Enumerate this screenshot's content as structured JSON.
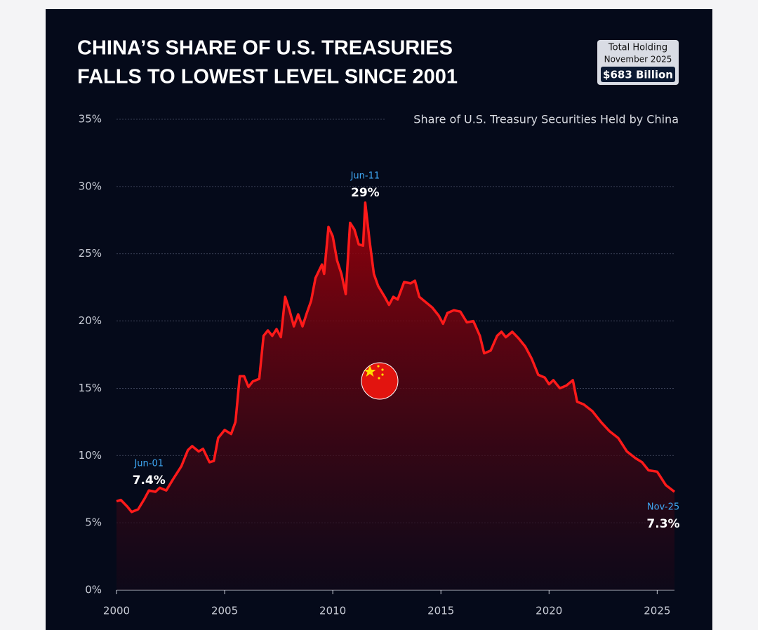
{
  "chart_data": {
    "type": "area",
    "title": [
      "CHINA’S SHARE OF U.S. TREASURIES",
      "FALLS TO LOWEST LEVEL SINCE 2001"
    ],
    "subtitle": "Share of U.S. Treasury Securities Held by China",
    "info_box": {
      "label": "Total Holding",
      "date": "November 2025",
      "value": "$683 Billion"
    },
    "x": [
      2000.0,
      2000.2,
      2000.5,
      2000.7,
      2001.0,
      2001.3,
      2001.5,
      2001.8,
      2002.0,
      2002.3,
      2002.6,
      2003.0,
      2003.3,
      2003.5,
      2003.8,
      2004.0,
      2004.3,
      2004.5,
      2004.7,
      2005.0,
      2005.3,
      2005.5,
      2005.7,
      2005.9,
      2006.1,
      2006.3,
      2006.6,
      2006.8,
      2007.0,
      2007.2,
      2007.4,
      2007.6,
      2007.8,
      2008.0,
      2008.2,
      2008.4,
      2008.6,
      2008.8,
      2009.0,
      2009.2,
      2009.5,
      2009.6,
      2009.8,
      2010.0,
      2010.2,
      2010.4,
      2010.6,
      2010.8,
      2011.0,
      2011.2,
      2011.4,
      2011.5,
      2011.7,
      2011.9,
      2012.1,
      2012.4,
      2012.6,
      2012.8,
      2013.0,
      2013.3,
      2013.6,
      2013.8,
      2014.0,
      2014.3,
      2014.6,
      2014.9,
      2015.1,
      2015.3,
      2015.6,
      2015.9,
      2016.2,
      2016.5,
      2016.8,
      2017.0,
      2017.3,
      2017.6,
      2017.8,
      2018.0,
      2018.3,
      2018.6,
      2018.9,
      2019.2,
      2019.5,
      2019.8,
      2020.0,
      2020.2,
      2020.5,
      2020.8,
      2021.1,
      2021.3,
      2021.6,
      2022.0,
      2022.4,
      2022.8,
      2023.2,
      2023.6,
      2024.0,
      2024.3,
      2024.6,
      2025.0,
      2025.4,
      2025.8
    ],
    "series": [
      {
        "name": "Share of U.S. Treasury Securities Held by China",
        "color": "#ff1a1a",
        "values": [
          6.6,
          6.7,
          6.2,
          5.8,
          6.0,
          6.8,
          7.4,
          7.3,
          7.6,
          7.4,
          8.2,
          9.2,
          10.4,
          10.7,
          10.3,
          10.5,
          9.5,
          9.6,
          11.3,
          11.9,
          11.6,
          12.5,
          15.9,
          15.9,
          15.1,
          15.5,
          15.7,
          18.9,
          19.3,
          18.9,
          19.4,
          18.8,
          21.8,
          20.8,
          19.6,
          20.5,
          19.6,
          20.6,
          21.5,
          23.2,
          24.2,
          23.5,
          27.0,
          26.3,
          24.5,
          23.5,
          22.0,
          27.3,
          26.8,
          25.7,
          25.6,
          28.8,
          26.0,
          23.5,
          22.6,
          21.8,
          21.2,
          21.8,
          21.6,
          22.9,
          22.8,
          23.0,
          21.8,
          21.4,
          21.0,
          20.4,
          19.8,
          20.6,
          20.8,
          20.7,
          19.9,
          20.0,
          18.9,
          17.6,
          17.8,
          18.9,
          19.2,
          18.8,
          19.2,
          18.7,
          18.1,
          17.2,
          16.0,
          15.8,
          15.3,
          15.6,
          15.0,
          15.2,
          15.6,
          14.0,
          13.8,
          13.3,
          12.5,
          11.8,
          11.3,
          10.3,
          9.8,
          9.5,
          8.9,
          8.8,
          7.8,
          7.3
        ]
      }
    ],
    "annotations": [
      {
        "date": "Jun-01",
        "x": 2001.5,
        "value": 7.4,
        "label": "7.4%"
      },
      {
        "date": "Jun-11",
        "x": 2011.5,
        "value": 28.8,
        "label": "29%"
      },
      {
        "date": "Nov-25",
        "x": 2025.8,
        "value": 7.3,
        "label": "7.3%"
      }
    ],
    "xlim": [
      2000,
      2025.8
    ],
    "xticks": [
      2000,
      2005,
      2010,
      2015,
      2020,
      2025
    ],
    "ylim": [
      0,
      35
    ],
    "yticks": [
      {
        "value": 0,
        "label": "0%"
      },
      {
        "value": 5,
        "label": "5%"
      },
      {
        "value": 10,
        "label": "10%"
      },
      {
        "value": 15,
        "label": "15%"
      },
      {
        "value": 20,
        "label": "20%"
      },
      {
        "value": 25,
        "label": "25%"
      },
      {
        "value": 30,
        "label": "30%"
      },
      {
        "value": 35,
        "label": "35%"
      }
    ],
    "grid": true
  }
}
